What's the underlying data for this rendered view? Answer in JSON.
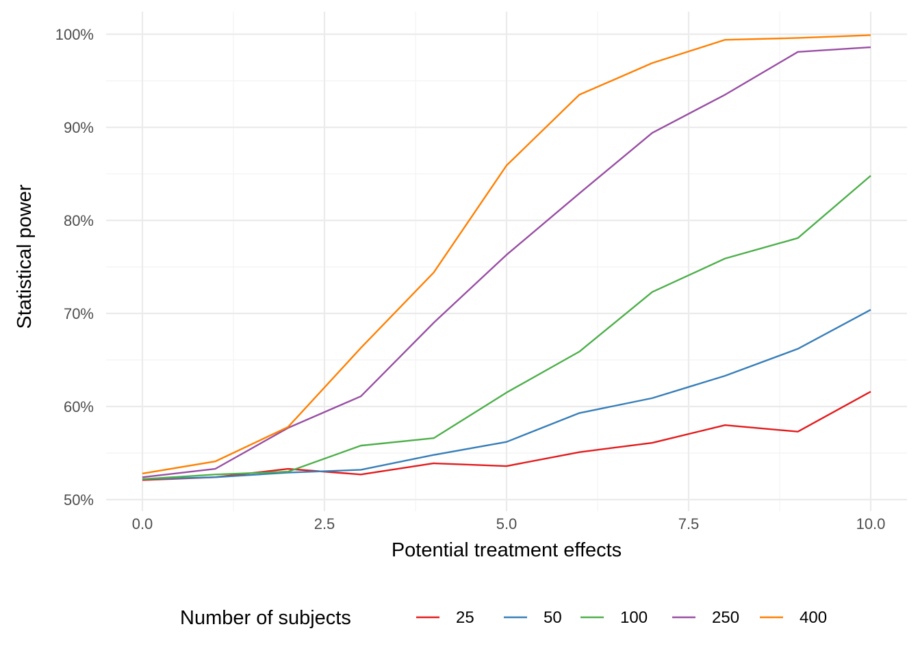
{
  "chart_data": {
    "type": "line",
    "xlabel": "Potential treatment effects",
    "ylabel": "Statistical power",
    "xlim": [
      0,
      10
    ],
    "ylim": [
      0.5,
      1.0
    ],
    "x_ticks": [
      0,
      2.5,
      5,
      7.5,
      10
    ],
    "x_tick_labels": [
      "0.0",
      "2.5",
      "5.0",
      "7.5",
      "10.0"
    ],
    "y_ticks": [
      0.5,
      0.6,
      0.7,
      0.8,
      0.9,
      1.0
    ],
    "y_tick_labels": [
      "50%",
      "60%",
      "70%",
      "80%",
      "90%",
      "100%"
    ],
    "grid": true,
    "legend": {
      "title": "Number of subjects",
      "position": "bottom"
    },
    "x": [
      0,
      1,
      2,
      3,
      4,
      5,
      6,
      7,
      8,
      9,
      10
    ],
    "series": [
      {
        "name": "25",
        "color": "#e41a1c",
        "values": [
          0.521,
          0.524,
          0.533,
          0.527,
          0.539,
          0.536,
          0.551,
          0.561,
          0.58,
          0.573,
          0.616
        ]
      },
      {
        "name": "50",
        "color": "#377eb8",
        "values": [
          0.522,
          0.524,
          0.529,
          0.532,
          0.548,
          0.562,
          0.593,
          0.609,
          0.633,
          0.662,
          0.704
        ]
      },
      {
        "name": "100",
        "color": "#4daf4a",
        "values": [
          0.522,
          0.527,
          0.53,
          0.558,
          0.566,
          0.615,
          0.659,
          0.723,
          0.759,
          0.781,
          0.848
        ]
      },
      {
        "name": "250",
        "color": "#984ea3",
        "values": [
          0.524,
          0.533,
          0.577,
          0.611,
          0.69,
          0.763,
          0.829,
          0.894,
          0.935,
          0.981,
          0.986
        ]
      },
      {
        "name": "400",
        "color": "#ff7f00",
        "values": [
          0.528,
          0.541,
          0.578,
          0.663,
          0.744,
          0.859,
          0.935,
          0.969,
          0.994,
          0.996,
          0.999
        ]
      }
    ]
  }
}
